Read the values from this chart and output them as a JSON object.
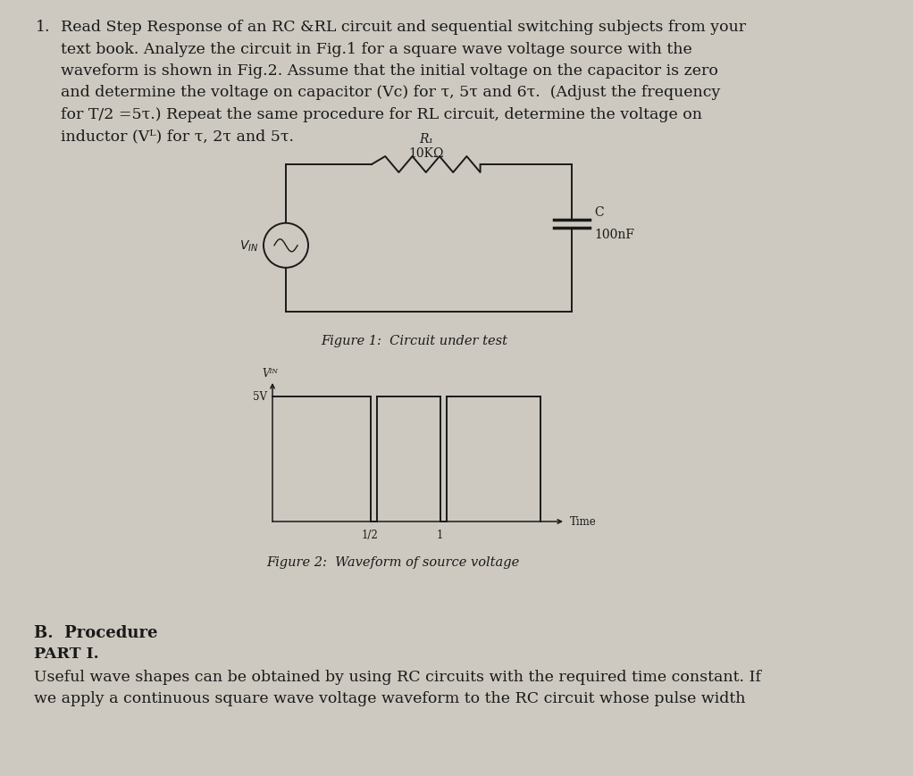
{
  "bg_color": "#cdc9c0",
  "text_color": "#1a1a1a",
  "page_number": "1.",
  "main_text_lines": [
    "Read Step Response of an RC &RL circuit and sequential switching subjects from your",
    "text book. Analyze the circuit in Fig.1 for a square wave voltage source with the",
    "waveform is shown in Fig.2. Assume that the initial voltage on the capacitor is zero",
    "and determine the voltage on capacitor (Vc) for τ, 5τ and 6τ.  (Adjust the frequency",
    "for T/2 =5τ.) Repeat the same procedure for RL circuit, determine the voltage on",
    "inductor (Vᴸ) for τ, 2τ and 5τ."
  ],
  "fig1_caption": "Figure 1:  Circuit under test",
  "fig2_caption": "Figure 2:  Waveform of source voltage",
  "section_b": "B.  Procedure",
  "part_i": "PART I.",
  "bottom_text_lines": [
    "Useful wave shapes can be obtained by using RC circuits with the required time constant. If",
    "we apply a continuous ​square wave​ voltage waveform to the RC circuit whose pulse width"
  ],
  "resistor_label": "R₁",
  "resistor_value": "10KΩ",
  "capacitor_label": "C",
  "capacitor_value": "100nF",
  "source_label": "Vᴵᴺ",
  "waveform_ylabel": "Vᴵᴺ",
  "waveform_5v_label": "5V",
  "waveform_xlabel": "Time",
  "waveform_t_half": "1/2",
  "waveform_t_one": "1"
}
